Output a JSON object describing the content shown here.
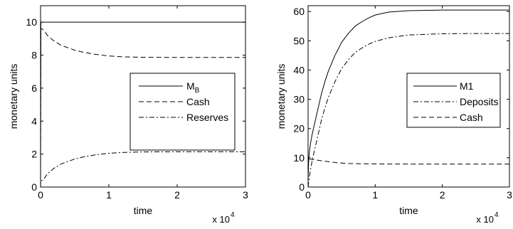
{
  "chart_data": [
    {
      "type": "line",
      "title": "",
      "xlabel": "time",
      "ylabel": "monetary units",
      "xlim": [
        0,
        3
      ],
      "ylim": [
        0,
        11
      ],
      "x_multiplier": {
        "base": "x 10",
        "exponent": "4"
      },
      "xticks": [
        "0",
        "1",
        "2",
        "3"
      ],
      "yticks": [
        "0",
        "2",
        "4",
        "6",
        "8",
        "10"
      ],
      "legend_position": "right-middle",
      "series": [
        {
          "name": "M",
          "name_subscript": "B",
          "style": "solid",
          "x": [
            0,
            0.005,
            3
          ],
          "y": [
            0,
            10,
            10
          ]
        },
        {
          "name": "Cash",
          "style": "dashed",
          "x": [
            0,
            0.003,
            0.02,
            0.05,
            0.1,
            0.2,
            0.3,
            0.4,
            0.5,
            0.6,
            0.8,
            1.0,
            1.2,
            1.5,
            2.0,
            2.5,
            3.0
          ],
          "y": [
            0,
            9.6,
            9.6,
            9.5,
            9.2,
            8.85,
            8.6,
            8.45,
            8.3,
            8.2,
            8.05,
            7.95,
            7.9,
            7.87,
            7.86,
            7.86,
            7.86
          ]
        },
        {
          "name": "Reserves",
          "style": "dashdot",
          "x": [
            0,
            0.003,
            0.02,
            0.05,
            0.1,
            0.2,
            0.3,
            0.4,
            0.5,
            0.6,
            0.8,
            1.0,
            1.2,
            1.5,
            2.0,
            2.5,
            3.0
          ],
          "y": [
            0,
            0.4,
            0.4,
            0.5,
            0.8,
            1.15,
            1.4,
            1.55,
            1.7,
            1.8,
            1.95,
            2.05,
            2.1,
            2.13,
            2.14,
            2.14,
            2.14
          ]
        }
      ]
    },
    {
      "type": "line",
      "title": "",
      "xlabel": "time",
      "ylabel": "monetary units",
      "xlim": [
        0,
        3
      ],
      "ylim": [
        0,
        62
      ],
      "x_multiplier": {
        "base": "x 10",
        "exponent": "4"
      },
      "xticks": [
        "0",
        "1",
        "2",
        "3"
      ],
      "yticks": [
        "0",
        "10",
        "20",
        "30",
        "40",
        "50",
        "60"
      ],
      "legend_position": "right-middle",
      "series": [
        {
          "name": "M1",
          "style": "solid",
          "x": [
            0,
            0.01,
            0.03,
            0.06,
            0.1,
            0.15,
            0.2,
            0.25,
            0.3,
            0.4,
            0.5,
            0.6,
            0.7,
            0.8,
            0.9,
            1.0,
            1.2,
            1.5,
            2.0,
            2.5,
            3.0
          ],
          "y": [
            2,
            10,
            14,
            18,
            22,
            27,
            32,
            36,
            39.5,
            45,
            49.5,
            52.5,
            55,
            56.5,
            57.8,
            58.8,
            59.8,
            60.3,
            60.5,
            60.5,
            60.5
          ]
        },
        {
          "name": "Deposits",
          "style": "dashdot",
          "x": [
            0,
            0.01,
            0.03,
            0.06,
            0.1,
            0.15,
            0.2,
            0.25,
            0.3,
            0.4,
            0.5,
            0.6,
            0.7,
            0.8,
            0.9,
            1.0,
            1.2,
            1.5,
            2.0,
            2.5,
            3.0
          ],
          "y": [
            0,
            2,
            5,
            9,
            13,
            18,
            23,
            27,
            30.5,
            36,
            40.5,
            43.5,
            46,
            47.5,
            48.8,
            49.8,
            51,
            52,
            52.4,
            52.5,
            52.5
          ]
        },
        {
          "name": "Cash",
          "style": "dashed",
          "x": [
            0,
            0.01,
            0.05,
            0.1,
            0.2,
            0.3,
            0.4,
            0.5,
            0.6,
            0.8,
            1.0,
            1.5,
            2.0,
            2.5,
            3.0
          ],
          "y": [
            7,
            9.5,
            9.5,
            9.3,
            9.0,
            8.7,
            8.4,
            8.2,
            8.05,
            7.95,
            7.9,
            7.85,
            7.85,
            7.85,
            7.85
          ]
        }
      ]
    }
  ]
}
